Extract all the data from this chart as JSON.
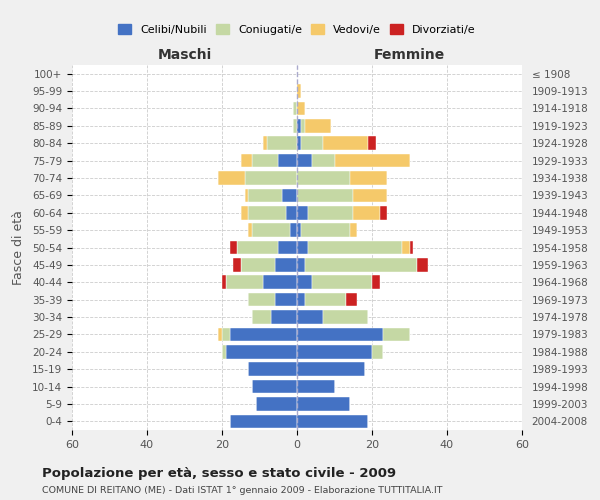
{
  "age_groups": [
    "0-4",
    "5-9",
    "10-14",
    "15-19",
    "20-24",
    "25-29",
    "30-34",
    "35-39",
    "40-44",
    "45-49",
    "50-54",
    "55-59",
    "60-64",
    "65-69",
    "70-74",
    "75-79",
    "80-84",
    "85-89",
    "90-94",
    "95-99",
    "100+"
  ],
  "birth_years": [
    "2004-2008",
    "1999-2003",
    "1994-1998",
    "1989-1993",
    "1984-1988",
    "1979-1983",
    "1974-1978",
    "1969-1973",
    "1964-1968",
    "1959-1963",
    "1954-1958",
    "1949-1953",
    "1944-1948",
    "1939-1943",
    "1934-1938",
    "1929-1933",
    "1924-1928",
    "1919-1923",
    "1914-1918",
    "1909-1913",
    "≤ 1908"
  ],
  "male": {
    "celibi": [
      18,
      11,
      12,
      13,
      19,
      18,
      7,
      6,
      9,
      6,
      5,
      2,
      3,
      4,
      0,
      5,
      0,
      0,
      0,
      0,
      0
    ],
    "coniugati": [
      0,
      0,
      0,
      0,
      1,
      2,
      5,
      7,
      10,
      9,
      11,
      10,
      10,
      9,
      14,
      7,
      8,
      1,
      1,
      0,
      0
    ],
    "vedovi": [
      0,
      0,
      0,
      0,
      0,
      1,
      0,
      0,
      0,
      0,
      0,
      1,
      2,
      1,
      7,
      3,
      1,
      0,
      0,
      0,
      0
    ],
    "divorziati": [
      0,
      0,
      0,
      0,
      0,
      0,
      0,
      0,
      1,
      2,
      2,
      0,
      0,
      0,
      0,
      0,
      0,
      0,
      0,
      0,
      0
    ]
  },
  "female": {
    "nubili": [
      19,
      14,
      10,
      18,
      20,
      23,
      7,
      2,
      4,
      2,
      3,
      1,
      3,
      0,
      0,
      4,
      1,
      1,
      0,
      0,
      0
    ],
    "coniugate": [
      0,
      0,
      0,
      0,
      3,
      7,
      12,
      11,
      16,
      30,
      25,
      13,
      12,
      15,
      14,
      6,
      6,
      1,
      0,
      0,
      0
    ],
    "vedove": [
      0,
      0,
      0,
      0,
      0,
      0,
      0,
      0,
      0,
      0,
      2,
      2,
      7,
      9,
      10,
      20,
      12,
      7,
      2,
      1,
      0
    ],
    "divorziate": [
      0,
      0,
      0,
      0,
      0,
      0,
      0,
      3,
      2,
      3,
      1,
      0,
      2,
      0,
      0,
      0,
      2,
      0,
      0,
      0,
      0
    ]
  },
  "colors": {
    "celibi": "#4472c4",
    "coniugati": "#c5d8a4",
    "vedovi": "#f5c96a",
    "divorziati": "#cc2222"
  },
  "xlim": 60,
  "title": "Popolazione per età, sesso e stato civile - 2009",
  "subtitle": "COMUNE DI REITANO (ME) - Dati ISTAT 1° gennaio 2009 - Elaborazione TUTTITALIA.IT",
  "ylabel_left": "Fasce di età",
  "xlabel_left": "Maschi",
  "xlabel_right": "Femmine",
  "legend_labels": [
    "Celibi/Nubili",
    "Coniugati/e",
    "Vedovi/e",
    "Divorziati/e"
  ],
  "bg_color": "#f0f0f0",
  "plot_bg_color": "#ffffff"
}
